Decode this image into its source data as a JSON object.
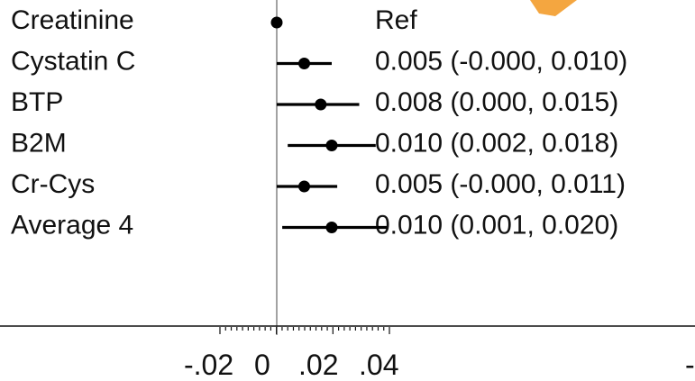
{
  "chart_data": {
    "type": "forest",
    "rows": [
      {
        "label": "Creatinine",
        "estimate": 0.0,
        "lower": 0.0,
        "upper": 0.0,
        "ci_text": "Ref"
      },
      {
        "label": "Cystatin C",
        "estimate": 0.005,
        "lower": -0.0,
        "upper": 0.01,
        "ci_text": "0.005 (-0.000, 0.010)"
      },
      {
        "label": "BTP",
        "estimate": 0.008,
        "lower": 0.0,
        "upper": 0.015,
        "ci_text": "0.008 (0.000, 0.015)"
      },
      {
        "label": "B2M",
        "estimate": 0.01,
        "lower": 0.002,
        "upper": 0.018,
        "ci_text": "0.010 (0.002, 0.018)"
      },
      {
        "label": "Cr-Cys",
        "estimate": 0.005,
        "lower": -0.0,
        "upper": 0.011,
        "ci_text": "0.005 (-0.000, 0.011)"
      },
      {
        "label": "Average 4",
        "estimate": 0.01,
        "lower": 0.001,
        "upper": 0.02,
        "ci_text": "0.010 (0.001, 0.020)"
      }
    ],
    "reference_value": 0,
    "xlim": [
      -0.02,
      0.04
    ],
    "x_ticks": [
      {
        "value": -0.02,
        "label": "-.02"
      },
      {
        "value": 0.0,
        "label": "0"
      },
      {
        "value": 0.02,
        "label": ".02"
      },
      {
        "value": 0.04,
        "label": ".04"
      }
    ],
    "minor_tick_step": 0.002,
    "colors": {
      "marker": "#000000",
      "reference_line": "#8a8a8a",
      "accent": "#f4a640"
    },
    "edge_label": "-"
  }
}
